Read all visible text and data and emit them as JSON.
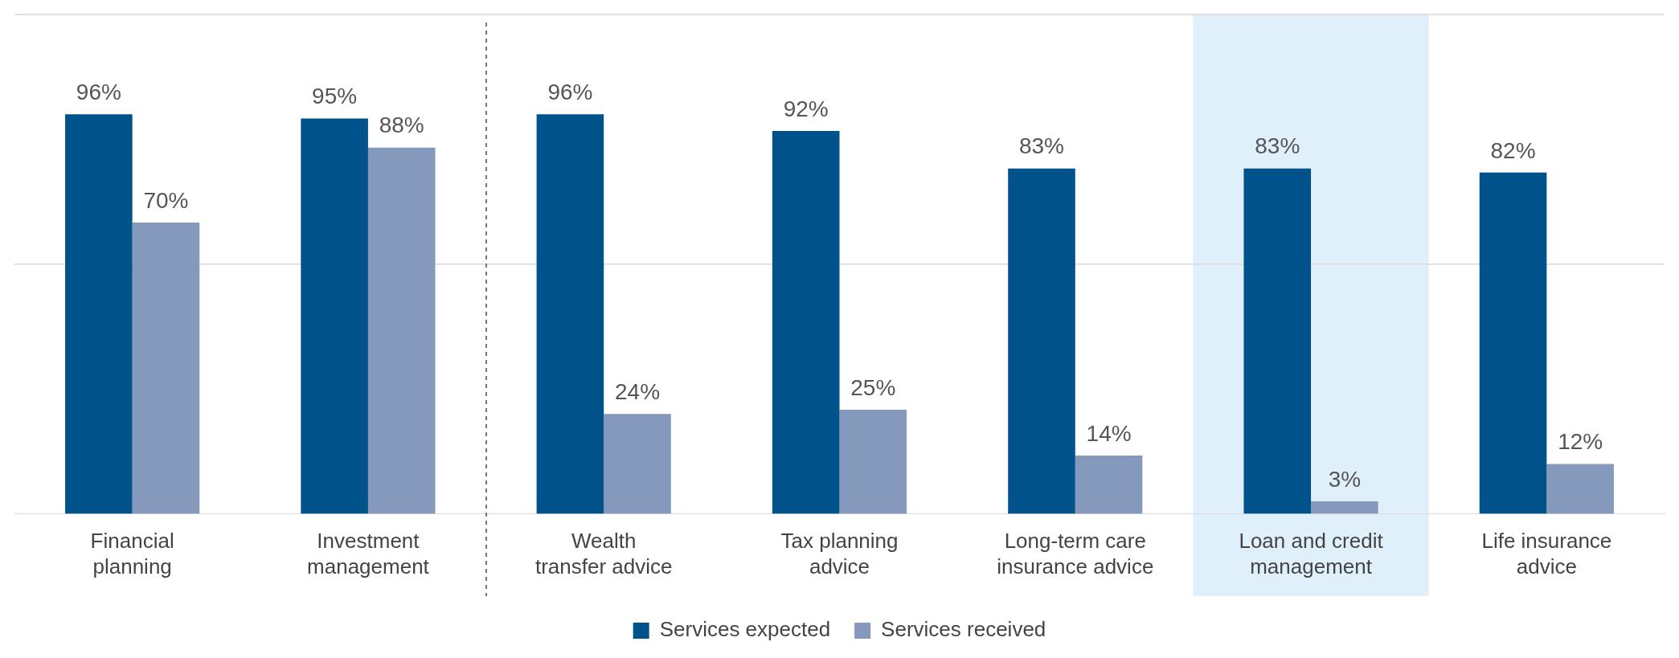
{
  "chart_data": {
    "type": "bar",
    "categories": [
      "Financial planning",
      "Investment management",
      "Wealth transfer advice",
      "Tax planning advice",
      "Long-term care insurance advice",
      "Loan and credit management",
      "Life insurance advice"
    ],
    "series": [
      {
        "name": "Services expected",
        "color": "#00538a",
        "values": [
          96,
          95,
          96,
          92,
          83,
          83,
          82
        ],
        "value_labels": [
          "96%",
          "95%",
          "96%",
          "92%",
          "83%",
          "83%",
          "82%"
        ]
      },
      {
        "name": "Services received",
        "color": "#8499bb",
        "values": [
          70,
          88,
          24,
          25,
          14,
          3,
          12
        ],
        "value_labels": [
          "70%",
          "88%",
          "24%",
          "25%",
          "14%",
          "3%",
          "12%"
        ]
      }
    ],
    "ylim": [
      0,
      120
    ],
    "tick_labels": "x",
    "legend": "bottom",
    "ref_lines": [
      {
        "axis": "y",
        "value": 60,
        "color": "#d9d9d9"
      },
      {
        "axis": "y",
        "value": 120,
        "color": "#d9d9d9"
      }
    ],
    "bands": [
      {
        "axis": "x",
        "from": "Loan and credit management",
        "to": "Loan and credit management",
        "color": "#dff0fb"
      }
    ]
  }
}
